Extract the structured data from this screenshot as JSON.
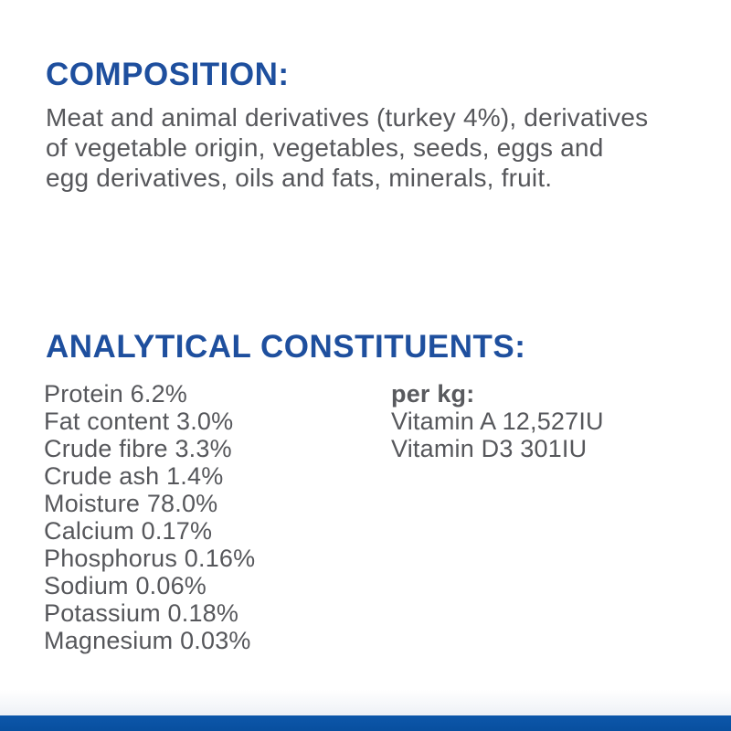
{
  "page": {
    "background": "#ffffff",
    "accent_blue": "#1e4f9e",
    "body_gray": "#56575b",
    "bar_blue": "#0a53a6"
  },
  "composition": {
    "heading": "COMPOSITION:",
    "body": "Meat and animal derivatives (turkey 4%), derivatives of vegetable origin, vegetables, seeds, eggs and egg derivatives, oils and fats, minerals, fruit."
  },
  "analytical": {
    "heading": "ANALYTICAL CONSTITUENTS:",
    "items": [
      "Protein 6.2%",
      "Fat content 3.0%",
      "Crude fibre 3.3%",
      "Crude ash 1.4%",
      "Moisture 78.0%",
      "Calcium 0.17%",
      "Phosphorus 0.16%",
      "Sodium 0.06%",
      "Potassium 0.18%",
      "Magnesium 0.03%"
    ],
    "per_kg": {
      "label": "per kg:",
      "items": [
        "Vitamin A 12,527IU",
        "Vitamin D3 301IU"
      ]
    }
  }
}
